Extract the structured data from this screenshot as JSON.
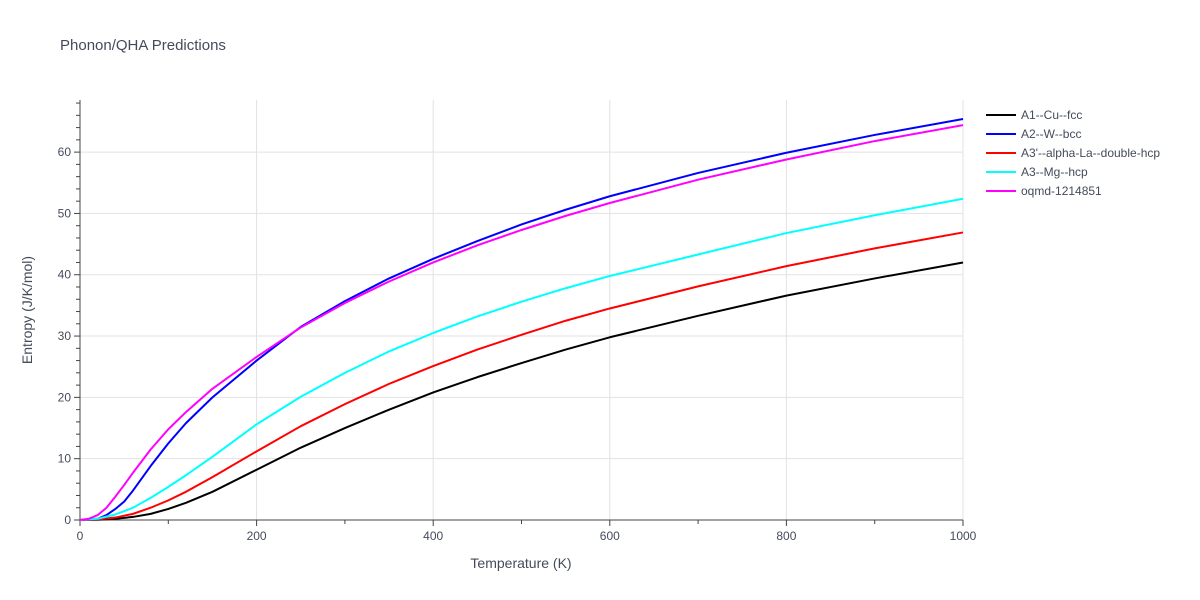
{
  "chart_data": {
    "type": "line",
    "title": "Phonon/QHA Predictions",
    "xlabel": "Temperature (K)",
    "ylabel": "Entropy (J/K/mol)",
    "xlim": [
      0,
      1000
    ],
    "ylim": [
      0,
      68.5
    ],
    "xticks": [
      0,
      200,
      400,
      600,
      800,
      1000
    ],
    "yticks": [
      0,
      10,
      20,
      30,
      40,
      50,
      60
    ],
    "grid": true,
    "legend_position": "top-right",
    "series": [
      {
        "name": "A1--Cu--fcc",
        "color": "#000000",
        "x": [
          0,
          20,
          40,
          60,
          80,
          100,
          120,
          150,
          200,
          250,
          300,
          350,
          400,
          450,
          500,
          550,
          600,
          700,
          800,
          900,
          1000
        ],
        "y": [
          0,
          0.05,
          0.2,
          0.5,
          1.0,
          1.8,
          2.8,
          4.6,
          8.2,
          11.8,
          15.0,
          18.0,
          20.8,
          23.3,
          25.6,
          27.8,
          29.8,
          33.3,
          36.6,
          39.4,
          42.0
        ]
      },
      {
        "name": "A2--W--bcc",
        "color": "#0000ff",
        "x": [
          0,
          20,
          30,
          40,
          50,
          60,
          80,
          100,
          120,
          150,
          200,
          250,
          300,
          350,
          400,
          450,
          500,
          550,
          600,
          700,
          800,
          900,
          1000
        ],
        "y": [
          0,
          0.2,
          0.8,
          1.8,
          3.0,
          4.8,
          8.8,
          12.5,
          15.8,
          20.0,
          26.0,
          31.5,
          35.7,
          39.4,
          42.6,
          45.5,
          48.2,
          50.6,
          52.8,
          56.6,
          59.9,
          62.8,
          65.4
        ]
      },
      {
        "name": "A3'--alpha-La--double-hcp",
        "color": "#ff0000",
        "x": [
          0,
          20,
          40,
          60,
          80,
          100,
          120,
          150,
          200,
          250,
          300,
          350,
          400,
          450,
          500,
          550,
          600,
          700,
          800,
          900,
          1000
        ],
        "y": [
          0,
          0.1,
          0.4,
          1.0,
          2.0,
          3.2,
          4.6,
          7.0,
          11.2,
          15.3,
          18.9,
          22.2,
          25.1,
          27.8,
          30.2,
          32.5,
          34.5,
          38.1,
          41.4,
          44.3,
          46.9
        ]
      },
      {
        "name": "A3--Mg--hcp",
        "color": "#00ffff",
        "x": [
          0,
          20,
          40,
          60,
          80,
          100,
          120,
          150,
          200,
          250,
          300,
          350,
          400,
          450,
          500,
          550,
          600,
          700,
          800,
          900,
          1000
        ],
        "y": [
          0,
          0.2,
          0.9,
          2.0,
          3.6,
          5.4,
          7.3,
          10.3,
          15.6,
          20.1,
          24.0,
          27.5,
          30.5,
          33.2,
          35.6,
          37.8,
          39.8,
          43.3,
          46.8,
          49.7,
          52.4
        ]
      },
      {
        "name": "oqmd-1214851",
        "color": "#ff00ff",
        "x": [
          0,
          10,
          20,
          30,
          40,
          50,
          60,
          80,
          100,
          120,
          150,
          200,
          250,
          300,
          350,
          400,
          450,
          500,
          550,
          600,
          700,
          800,
          900,
          1000
        ],
        "y": [
          0,
          0.2,
          0.8,
          2.0,
          3.8,
          5.7,
          7.7,
          11.5,
          14.8,
          17.6,
          21.4,
          26.6,
          31.4,
          35.4,
          38.9,
          42.0,
          44.8,
          47.3,
          49.6,
          51.7,
          55.5,
          58.8,
          61.8,
          64.4
        ]
      }
    ]
  }
}
